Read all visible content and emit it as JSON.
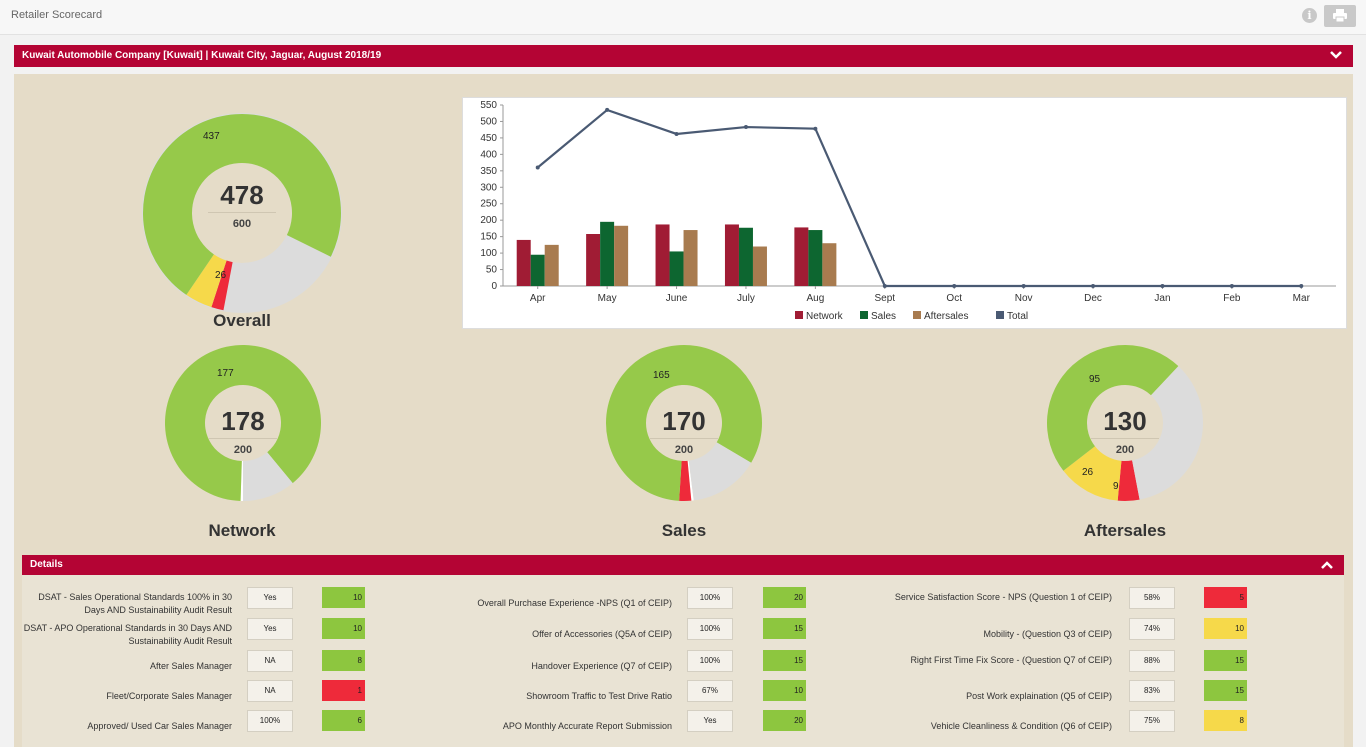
{
  "app": {
    "title": "Retailer Scorecard"
  },
  "header": {
    "title": "Kuwait Automobile Company [Kuwait] | Kuwait City, Jaguar, August 2018/19"
  },
  "donuts": {
    "overall": {
      "title": "Overall",
      "score": "478",
      "max": "600",
      "green_label": "437",
      "yellow_label": "26",
      "red_label": ""
    },
    "network": {
      "title": "Network",
      "score": "178",
      "max": "200",
      "green_label": "177"
    },
    "sales": {
      "title": "Sales",
      "score": "170",
      "max": "200",
      "green_label": "165"
    },
    "aftersales": {
      "title": "Aftersales",
      "score": "130",
      "max": "200",
      "green_label": "95",
      "yellow_label": "26",
      "red_label": "9"
    }
  },
  "chart_data": {
    "type": "bar",
    "title": "",
    "categories": [
      "Apr",
      "May",
      "June",
      "July",
      "Aug",
      "Sept",
      "Oct",
      "Nov",
      "Dec",
      "Jan",
      "Feb",
      "Mar"
    ],
    "series": [
      {
        "name": "Network",
        "color": "#a01c34",
        "values": [
          140,
          158,
          187,
          187,
          178,
          null,
          null,
          null,
          null,
          null,
          null,
          null
        ]
      },
      {
        "name": "Sales",
        "color": "#0d6630",
        "values": [
          95,
          195,
          105,
          177,
          170,
          null,
          null,
          null,
          null,
          null,
          null,
          null
        ]
      },
      {
        "name": "Aftersales",
        "color": "#a87b4f",
        "values": [
          125,
          183,
          170,
          120,
          130,
          null,
          null,
          null,
          null,
          null,
          null,
          null
        ]
      },
      {
        "name": "Total",
        "color": "#4a5a73",
        "type": "line",
        "values": [
          360,
          535,
          462,
          483,
          478,
          0,
          0,
          0,
          0,
          0,
          0,
          0
        ]
      }
    ],
    "yticks": [
      0,
      50,
      100,
      150,
      200,
      250,
      300,
      350,
      400,
      450,
      500,
      550
    ],
    "ylim": [
      0,
      550
    ],
    "legend": "bottom"
  },
  "details": {
    "title": "Details",
    "col1": [
      {
        "label": "DSAT - Sales Operational Standards 100% in 30 Days AND Sustainability Audit Result",
        "value": "Yes",
        "score": "10",
        "status": "green"
      },
      {
        "label": "DSAT - APO Operational Standards in 30 Days AND Sustainability Audit Result",
        "value": "Yes",
        "score": "10",
        "status": "green"
      },
      {
        "label": "After Sales Manager",
        "value": "NA",
        "score": "8",
        "status": "green"
      },
      {
        "label": "Fleet/Corporate Sales Manager",
        "value": "NA",
        "score": "1",
        "status": "red"
      },
      {
        "label": "Approved/ Used Car Sales Manager",
        "value": "100%",
        "score": "6",
        "status": "green"
      }
    ],
    "col2": [
      {
        "label": "Overall Purchase Experience -NPS (Q1 of CEIP)",
        "value": "100%",
        "score": "20",
        "status": "green"
      },
      {
        "label": "Offer of Accessories (Q5A of CEIP)",
        "value": "100%",
        "score": "15",
        "status": "green"
      },
      {
        "label": "Handover Experience (Q7 of CEIP)",
        "value": "100%",
        "score": "15",
        "status": "green"
      },
      {
        "label": "Showroom Traffic to Test Drive Ratio",
        "value": "67%",
        "score": "10",
        "status": "green"
      },
      {
        "label": "APO Monthly Accurate Report Submission",
        "value": "Yes",
        "score": "20",
        "status": "green"
      }
    ],
    "col3": [
      {
        "label": "Service Satisfaction Score - NPS (Question 1 of CEIP)",
        "value": "58%",
        "score": "5",
        "status": "red"
      },
      {
        "label": "Mobility - (Question Q3 of CEIP)",
        "value": "74%",
        "score": "10",
        "status": "yellow"
      },
      {
        "label": "Right First Time Fix Score - (Question Q7 of CEIP)",
        "value": "88%",
        "score": "15",
        "status": "green"
      },
      {
        "label": "Post Work explaination (Q5 of CEIP)",
        "value": "83%",
        "score": "15",
        "status": "green"
      },
      {
        "label": "Vehicle Cleanliness & Condition (Q6 of CEIP)",
        "value": "75%",
        "score": "8",
        "status": "yellow"
      }
    ]
  }
}
